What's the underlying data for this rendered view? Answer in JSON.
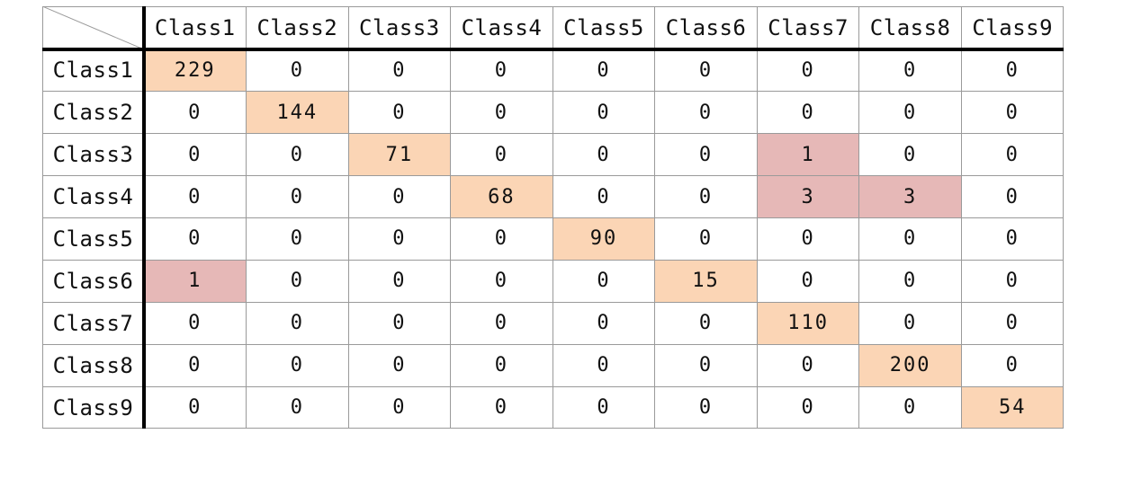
{
  "chart_data": {
    "type": "table",
    "title": "",
    "columns": [
      "Class1",
      "Class2",
      "Class3",
      "Class4",
      "Class5",
      "Class6",
      "Class7",
      "Class8",
      "Class9"
    ],
    "rows": [
      "Class1",
      "Class2",
      "Class3",
      "Class4",
      "Class5",
      "Class6",
      "Class7",
      "Class8",
      "Class9"
    ],
    "values": [
      [
        229,
        0,
        0,
        0,
        0,
        0,
        0,
        0,
        0
      ],
      [
        0,
        144,
        0,
        0,
        0,
        0,
        0,
        0,
        0
      ],
      [
        0,
        0,
        71,
        0,
        0,
        0,
        1,
        0,
        0
      ],
      [
        0,
        0,
        0,
        68,
        0,
        0,
        3,
        3,
        0
      ],
      [
        0,
        0,
        0,
        0,
        90,
        0,
        0,
        0,
        0
      ],
      [
        1,
        0,
        0,
        0,
        0,
        15,
        0,
        0,
        0
      ],
      [
        0,
        0,
        0,
        0,
        0,
        0,
        110,
        0,
        0
      ],
      [
        0,
        0,
        0,
        0,
        0,
        0,
        0,
        200,
        0
      ],
      [
        0,
        0,
        0,
        0,
        0,
        0,
        0,
        0,
        54
      ]
    ],
    "colors": {
      "diagonal": "#fbd5b5",
      "off_diagonal_nonzero": "#e6b8b7",
      "zero": "#ffffff",
      "text": "#111111",
      "grid": "#9a9a9a",
      "header_border": "#000000"
    }
  }
}
